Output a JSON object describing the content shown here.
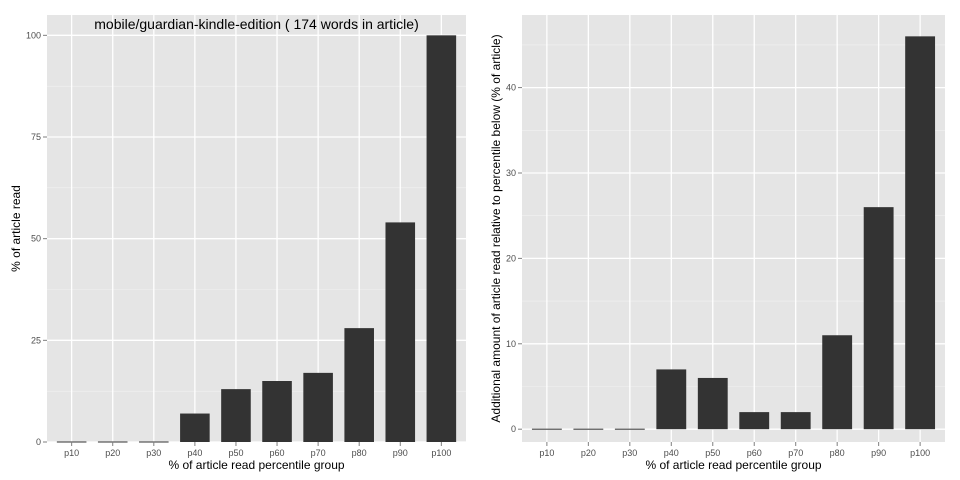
{
  "chart_data": [
    {
      "type": "bar",
      "title": "mobile/guardian-kindle-edition ( 174 words in article)",
      "xlabel": "% of article read percentile group",
      "ylabel": "% of article read",
      "categories": [
        "p10",
        "p20",
        "p30",
        "p40",
        "p50",
        "p60",
        "p70",
        "p80",
        "p90",
        "p100"
      ],
      "values": [
        0,
        0,
        0,
        7,
        13,
        15,
        17,
        28,
        54,
        100
      ],
      "ylim": [
        0,
        105
      ],
      "yticks": [
        0,
        25,
        50,
        75,
        100
      ],
      "ytick_labels": [
        "0",
        "25",
        "50",
        "75",
        "100"
      ],
      "bar_color": "#333333",
      "grid": true
    },
    {
      "type": "bar",
      "title": "",
      "xlabel": "% of article read percentile group",
      "ylabel": "Additional amount of article read relative to percentile below (% of article)",
      "categories": [
        "p10",
        "p20",
        "p30",
        "p40",
        "p50",
        "p60",
        "p70",
        "p80",
        "p90",
        "p100"
      ],
      "values": [
        0,
        0,
        0,
        7,
        6,
        2,
        2,
        11,
        26,
        46
      ],
      "ylim": [
        -1.5,
        48.5
      ],
      "yticks": [
        0,
        10,
        20,
        30,
        40
      ],
      "ytick_labels": [
        "0",
        "10",
        "20",
        "30",
        "40"
      ],
      "bar_color": "#333333",
      "grid": true
    }
  ]
}
